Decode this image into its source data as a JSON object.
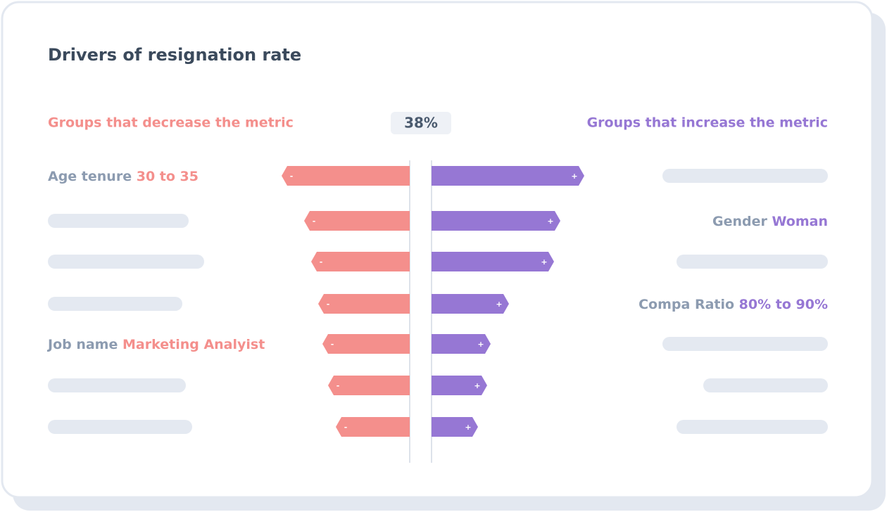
{
  "chart_data": {
    "type": "diverging_bar",
    "title": "Drivers of resignation rate",
    "center_label": "38%",
    "xlim": [
      0,
      220
    ],
    "series": [
      {
        "name": "Groups that decrease the metric",
        "color": "#f48f8c",
        "sign": "-",
        "labels": [
          {
            "group": "Age tenure",
            "value": "30 to 35"
          },
          null,
          null,
          null,
          {
            "group": "Job name",
            "value": "Marketing Analyist"
          },
          null,
          null
        ],
        "values": [
          182,
          150,
          140,
          130,
          124,
          116,
          105
        ]
      },
      {
        "name": "Groups that increase the metric",
        "color": "#9677d4",
        "sign": "+",
        "labels": [
          null,
          {
            "group": "Gender",
            "value": "Woman"
          },
          null,
          {
            "group": "Compa Ratio",
            "value": "80% to 90%"
          },
          null,
          null,
          null
        ],
        "values": [
          217,
          183,
          174,
          110,
          84,
          79,
          66
        ]
      }
    ]
  }
}
